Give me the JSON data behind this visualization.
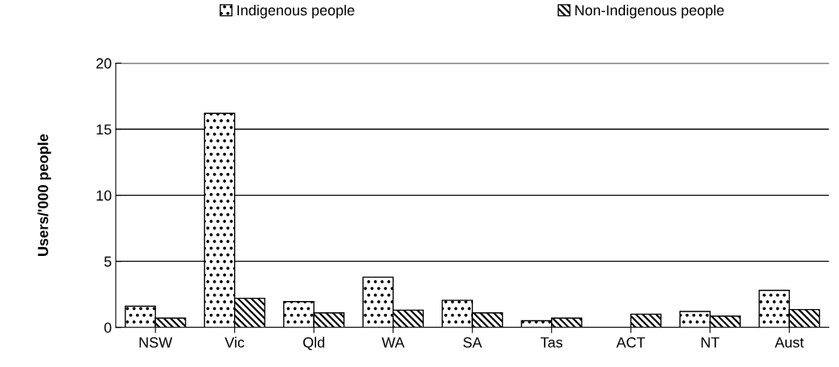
{
  "chart_data": {
    "type": "bar",
    "ylabel": "Users/'000 people",
    "categories": [
      "NSW",
      "Vic",
      "Qld",
      "WA",
      "SA",
      "Tas",
      "ACT",
      "NT",
      "Aust"
    ],
    "series": [
      {
        "name": "Indigenous people",
        "color": "#000000",
        "values": [
          1.6,
          16.2,
          1.95,
          3.8,
          2.05,
          0.5,
          null,
          1.2,
          2.8
        ]
      },
      {
        "name": "Non-Indigenous people",
        "color": "#000000",
        "values": [
          0.7,
          2.2,
          1.1,
          1.3,
          1.1,
          0.7,
          1.0,
          0.85,
          1.35
        ]
      }
    ],
    "ylim": [
      0,
      20
    ],
    "yticks": [
      0,
      5,
      10,
      15,
      20
    ],
    "grid": "y",
    "legend": "top"
  }
}
